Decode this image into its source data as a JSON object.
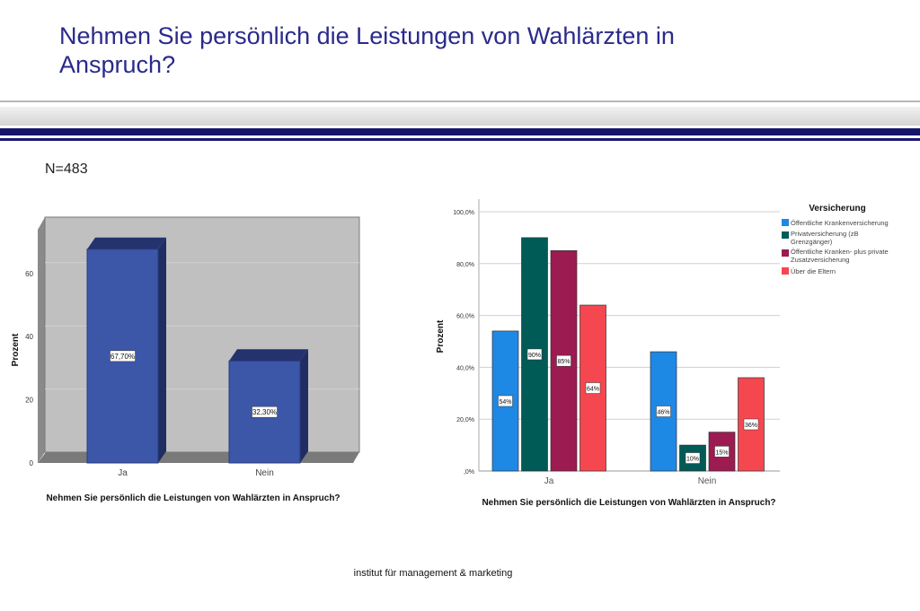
{
  "header": {
    "title": "Nehmen Sie persönlich die Leistungen von Wahlärzten in Anspruch?"
  },
  "sample_size": "N=483",
  "footer": "institut für management & marketing",
  "chart_data": [
    {
      "type": "bar",
      "style": "3d",
      "categories": [
        "Ja",
        "Nein"
      ],
      "values": [
        67.7,
        32.3
      ],
      "data_labels": [
        "67,70%",
        "32,30%"
      ],
      "xlabel": "Nehmen Sie persönlich die Leistungen von Wahlärzten in Anspruch?",
      "ylabel": "Prozent",
      "ylim": [
        0,
        75
      ],
      "yticks": [
        0,
        20,
        40,
        60
      ],
      "ytick_labels": [
        "0",
        "20",
        "40",
        "60"
      ],
      "bar_color": "#3c56a8",
      "background": "#c0c0c0",
      "grid": true
    },
    {
      "type": "bar",
      "categories": [
        "Ja",
        "Nein"
      ],
      "legend_title": "Versicherung",
      "legend_position": "top-right",
      "series": [
        {
          "name": "Öffentliche Krankenversicherung",
          "values": [
            54,
            46
          ],
          "labels": [
            "54%",
            "46%"
          ],
          "color": "#1e88e5"
        },
        {
          "name": "Privatversicherung (zB Grenzgänger)",
          "values": [
            90,
            10
          ],
          "labels": [
            "90%",
            "10%"
          ],
          "color": "#005a55"
        },
        {
          "name": "Öffentliche Kranken- plus private Zusatzversicherung",
          "values": [
            85,
            15
          ],
          "labels": [
            "85%",
            "15%"
          ],
          "color": "#9c1b50"
        },
        {
          "name": "Über die Eltern",
          "values": [
            64,
            36
          ],
          "labels": [
            "64%",
            "36%"
          ],
          "color": "#f5474f"
        }
      ],
      "xlabel": "Nehmen Sie persönlich die Leistungen von Wahlärzten in Anspruch?",
      "ylabel": "Prozent",
      "ylim": [
        0,
        100
      ],
      "yticks": [
        0,
        20,
        40,
        60,
        80,
        100
      ],
      "ytick_labels": [
        ",0%",
        "20,0%",
        "40,0%",
        "60,0%",
        "80,0%",
        "100,0%"
      ],
      "grid": true
    }
  ]
}
